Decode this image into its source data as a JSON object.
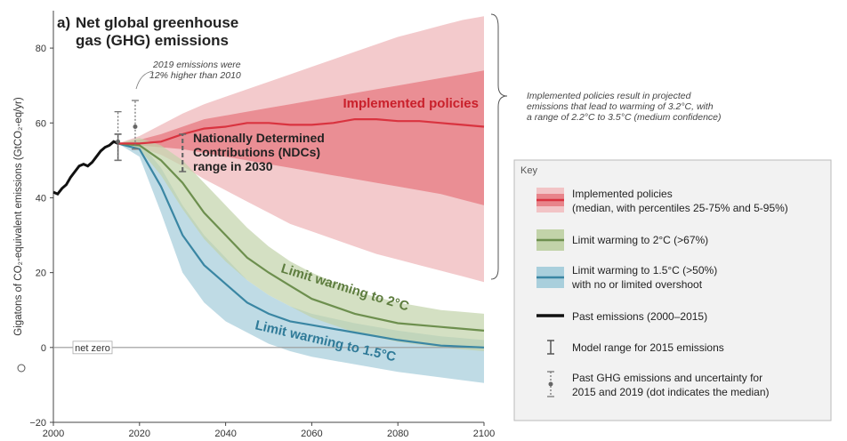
{
  "chart_data": {
    "type": "line",
    "title_prefix": "a)",
    "title_lines": [
      "Net global greenhouse",
      "gas (GHG) emissions"
    ],
    "ylabel": "Gigatons of CO₂-equivalent emissions (GtCO₂-eq/yr)",
    "xlim": [
      2000,
      2100
    ],
    "ylim": [
      -20,
      90
    ],
    "x_ticks": [
      2000,
      2020,
      2040,
      2060,
      2080,
      2100
    ],
    "y_ticks": [
      -20,
      0,
      20,
      40,
      60,
      80
    ],
    "net_zero_label": "net zero",
    "past_emissions": {
      "name": "Past emissions (2000–2015)",
      "x": [
        2000,
        2001,
        2002,
        2003,
        2004,
        2005,
        2006,
        2007,
        2008,
        2009,
        2010,
        2011,
        2012,
        2013,
        2014,
        2015
      ],
      "y": [
        41.5,
        41,
        42.5,
        43.5,
        45.5,
        47,
        48.5,
        49,
        48.5,
        49.5,
        51,
        52.5,
        53.5,
        54,
        55,
        54.5
      ]
    },
    "series": [
      {
        "name": "Implemented policies",
        "color": "#d9333f",
        "x": [
          2015,
          2020,
          2025,
          2030,
          2035,
          2040,
          2045,
          2050,
          2055,
          2060,
          2065,
          2070,
          2075,
          2080,
          2085,
          2090,
          2095,
          2100
        ],
        "y": [
          54.5,
          54.5,
          55,
          57,
          58.5,
          59,
          60,
          60,
          59.5,
          59.5,
          60,
          61,
          61,
          60.5,
          60.5,
          60,
          59.5,
          59
        ],
        "p25": [
          54.5,
          54,
          53.5,
          53,
          52,
          51,
          50,
          49,
          48,
          47,
          46,
          45,
          44,
          43,
          42,
          41,
          39.5,
          38
        ],
        "p75": [
          54.5,
          55.5,
          57,
          59,
          61,
          62,
          63,
          64,
          65,
          66,
          67,
          68,
          69,
          70,
          71,
          72,
          73,
          74
        ],
        "p5": [
          54.5,
          53.5,
          51.5,
          48.5,
          45,
          42,
          39,
          36,
          33,
          31,
          29,
          27,
          25,
          23.5,
          22,
          20.5,
          19,
          17.5
        ],
        "p95": [
          54.5,
          56.5,
          59.5,
          62.5,
          65,
          67,
          69,
          71,
          73,
          75,
          77,
          79,
          81,
          83,
          84.5,
          86,
          87.5,
          88.5
        ]
      },
      {
        "name": "Limit warming to 2°C (>67%)",
        "color": "#6d8f4e",
        "x": [
          2015,
          2020,
          2025,
          2030,
          2035,
          2040,
          2045,
          2050,
          2055,
          2060,
          2070,
          2080,
          2090,
          2100
        ],
        "y": [
          54.5,
          54,
          50,
          44,
          36,
          30,
          24,
          20,
          16.5,
          13,
          9,
          6.5,
          5.5,
          4.5
        ],
        "low": [
          54.5,
          53,
          46,
          37,
          29,
          23,
          18,
          14,
          11,
          8,
          4,
          1.5,
          0,
          -1
        ],
        "high": [
          54.5,
          56,
          54,
          50,
          44,
          38,
          32,
          27,
          23,
          20,
          15,
          12,
          10,
          9
        ]
      },
      {
        "name": "Limit warming to 1.5°C (>50%)",
        "color": "#3a86a3",
        "x": [
          2015,
          2020,
          2025,
          2030,
          2035,
          2040,
          2045,
          2050,
          2055,
          2060,
          2070,
          2080,
          2090,
          2100
        ],
        "y": [
          54.5,
          53,
          43,
          30,
          22,
          17,
          12,
          9,
          7,
          6,
          4,
          2,
          0.5,
          0
        ],
        "low": [
          54.5,
          51,
          36,
          20,
          12,
          7,
          4,
          1,
          -1,
          -2.5,
          -4.5,
          -6.5,
          -8,
          -9.5
        ],
        "high": [
          54.5,
          55,
          48,
          38,
          30,
          24,
          18,
          14,
          11,
          9,
          6.5,
          4.5,
          3,
          2
        ]
      }
    ],
    "model_range_2015": {
      "year": 2015,
      "low": 50,
      "high": 57
    },
    "past_uncertainty": [
      {
        "year": 2015,
        "low": 50,
        "median": 55,
        "high": 63
      },
      {
        "year": 2019,
        "low": 53,
        "median": 59,
        "high": 66
      }
    ],
    "ndc_range_2030": {
      "year": 2030,
      "low": 47,
      "high": 57
    },
    "annotations": {
      "emissions_2019": [
        "2019 emissions were",
        "12% higher than 2010"
      ],
      "ndc": [
        "Nationally Determined",
        "Contributions (NDCs)",
        "range in 2030"
      ],
      "implemented_label": "Implemented policies",
      "label_2c": "Limit warming to 2°C",
      "label_15c": "Limit warming to 1.5°C",
      "projection_note": [
        "Implemented policies result in projected",
        "emissions that lead to warming of 3.2°C, with",
        "a range of 2.2°C to 3.5°C (medium confidence)"
      ]
    },
    "legend": {
      "title": "Key",
      "entries": [
        {
          "lines": [
            "Implemented policies",
            "(median, with percentiles 25-75% and 5-95%)"
          ]
        },
        {
          "lines": [
            "Limit warming to 2°C (>67%)"
          ]
        },
        {
          "lines": [
            "Limit warming to 1.5°C (>50%)",
            "with no or limited overshoot"
          ]
        },
        {
          "lines": [
            "Past emissions (2000–2015)"
          ]
        },
        {
          "lines": [
            "Model range for 2015 emissions"
          ]
        },
        {
          "lines": [
            "Past GHG emissions and uncertainty for",
            "2015 and 2019 (dot indicates the median)"
          ]
        }
      ]
    }
  }
}
